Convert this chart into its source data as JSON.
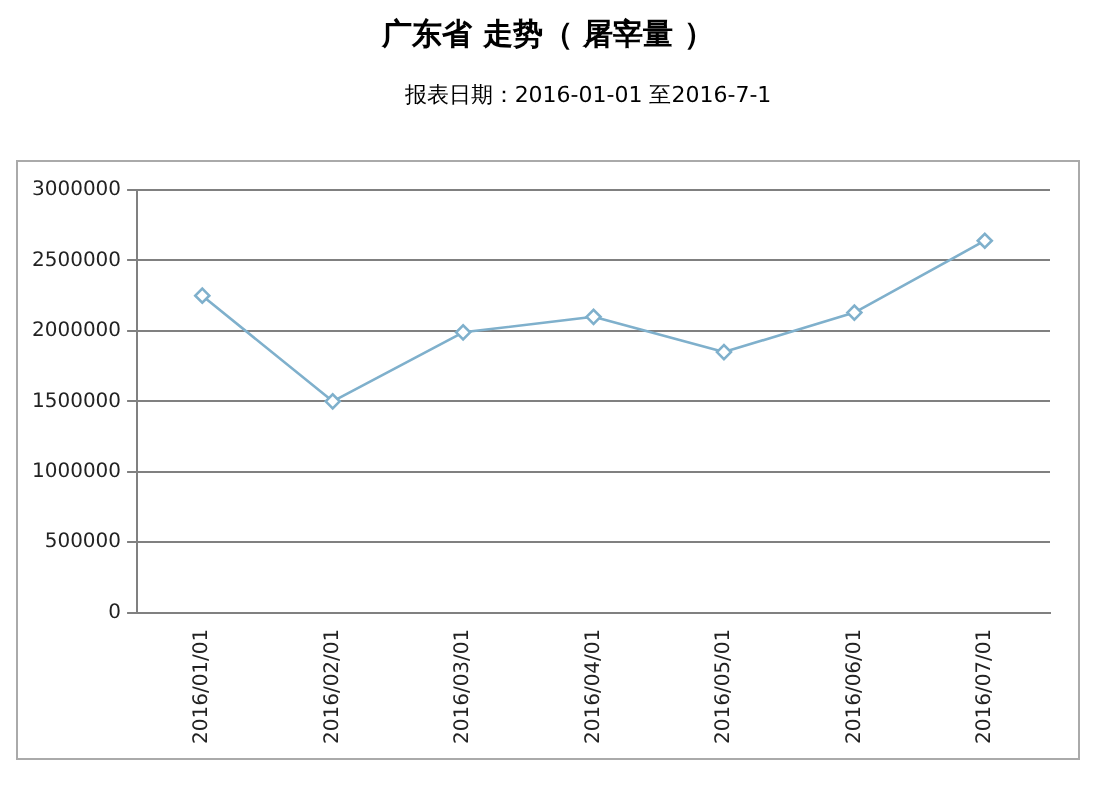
{
  "chart_data": {
    "type": "line",
    "title": "广东省 走势（ 屠宰量 ）",
    "subtitle": "报表日期：2016-01-01 至2016-7-1",
    "categories": [
      "2016/01/01",
      "2016/02/01",
      "2016/03/01",
      "2016/04/01",
      "2016/05/01",
      "2016/06/01",
      "2016/07/01"
    ],
    "series": [
      {
        "color": "#7fb0cc",
        "values": [
          2250000,
          1500000,
          1990000,
          2100000,
          1850000,
          2130000,
          2640000
        ]
      }
    ],
    "ylim": [
      0,
      3000000
    ],
    "yticks": [
      0,
      500000,
      1000000,
      1500000,
      2000000,
      2500000,
      3000000
    ],
    "grid": "y",
    "legend": false,
    "marker": "diamond",
    "line_style": "solid"
  }
}
